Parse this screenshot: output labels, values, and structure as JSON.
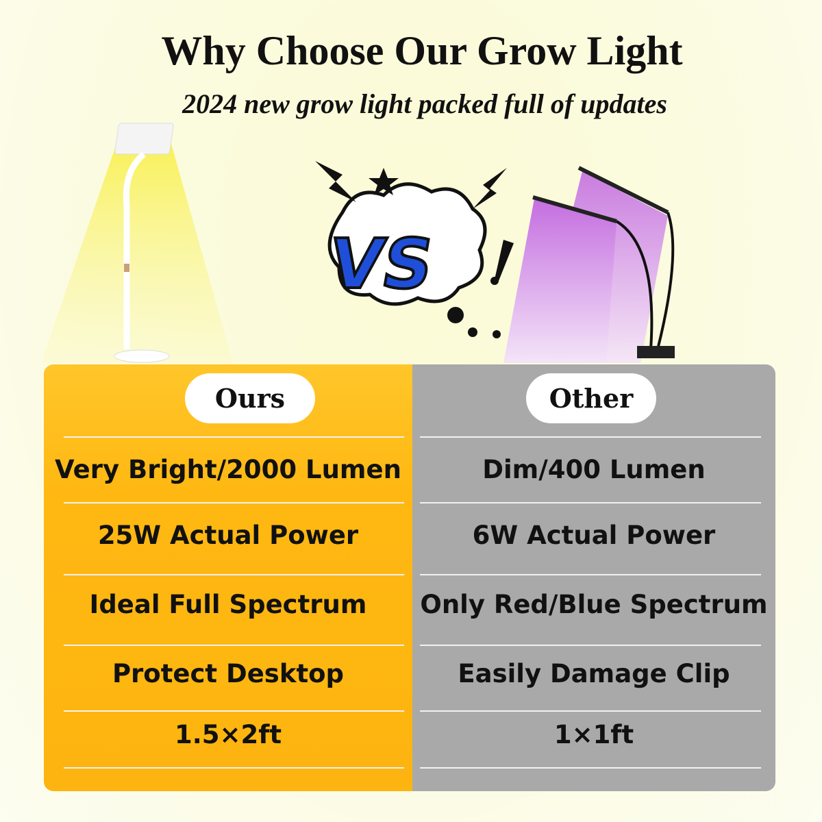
{
  "header": {
    "title": "Why Choose Our Grow Light",
    "subtitle": "2024 new grow light packed full of updates"
  },
  "vs_badge": "VS",
  "colors": {
    "ours": "#fdb410",
    "other": "#a9a9a9",
    "vs_blue": "#1f4fd8",
    "vs_red": "#e8262a"
  },
  "comparison": {
    "ours": {
      "header": "Ours",
      "rows": [
        "Very Bright/2000 Lumen",
        "25W Actual Power",
        "Ideal Full Spectrum",
        "Protect Desktop",
        "1.5×2ft"
      ]
    },
    "other": {
      "header": "Other",
      "rows": [
        "Dim/400 Lumen",
        "6W Actual Power",
        "Only Red/Blue Spectrum",
        "Easily Damage Clip",
        "1×1ft"
      ]
    }
  }
}
